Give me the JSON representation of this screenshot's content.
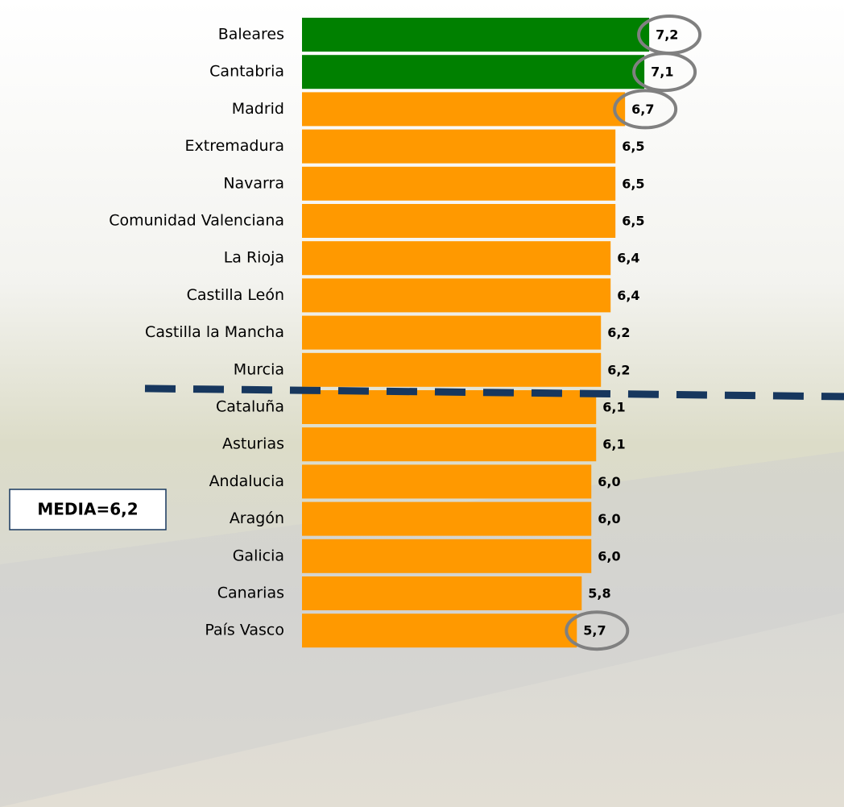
{
  "chart_data": {
    "type": "barh",
    "categories": [
      "Baleares",
      "Cantabria",
      "Madrid",
      "Extremadura",
      "Navarra",
      "Comunidad Valenciana",
      "La Rioja",
      "Castilla León",
      "Castilla la Mancha",
      "Murcia",
      "Cataluña",
      "Asturias",
      "Andalucia",
      "Aragón",
      "Galicia",
      "Canarias",
      "País Vasco"
    ],
    "values": [
      7.2,
      7.1,
      6.7,
      6.5,
      6.5,
      6.5,
      6.4,
      6.4,
      6.2,
      6.2,
      6.1,
      6.1,
      6.0,
      6.0,
      6.0,
      5.8,
      5.7
    ],
    "value_labels": [
      "7,2",
      "7,1",
      "6,7",
      "6,5",
      "6,5",
      "6,5",
      "6,4",
      "6,4",
      "6,2",
      "6,2",
      "6,1",
      "6,1",
      "6,0",
      "6,0",
      "6,0",
      "5,8",
      "5,7"
    ],
    "colors": [
      "#008000",
      "#008000",
      "#ff9900",
      "#ff9900",
      "#ff9900",
      "#ff9900",
      "#ff9900",
      "#ff9900",
      "#ff9900",
      "#ff9900",
      "#ff9900",
      "#ff9900",
      "#ff9900",
      "#ff9900",
      "#ff9900",
      "#ff9900",
      "#ff9900"
    ],
    "highlighted": [
      0,
      1,
      2,
      16
    ],
    "xlim": [
      0,
      8
    ],
    "mean": {
      "value": 6.2,
      "label": "MEDIA=6,2"
    }
  }
}
